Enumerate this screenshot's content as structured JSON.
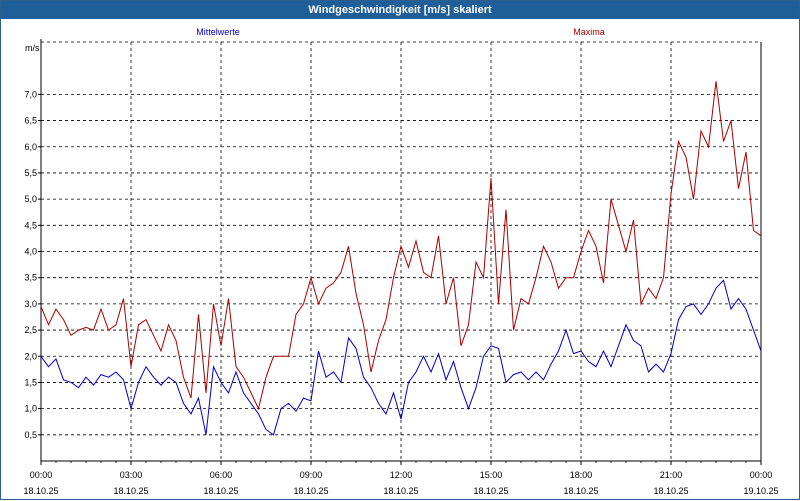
{
  "window": {
    "title": "Windgeschwindigkeit [m/s] skaliert"
  },
  "colors": {
    "mittel": "#0000cc",
    "maxima": "#aa0000",
    "titlebar": "#1f5f99"
  },
  "chart_data": {
    "type": "line",
    "title": "Windgeschwindigkeit [m/s] skaliert",
    "ylabel": "m/s",
    "xlabel": "",
    "ylim": [
      0,
      8
    ],
    "xlim": [
      0,
      24
    ],
    "y_ticks": [
      0.5,
      1.0,
      1.5,
      2.0,
      2.5,
      3.0,
      3.5,
      4.0,
      4.5,
      5.0,
      5.5,
      6.0,
      6.5,
      7.0
    ],
    "y_tick_labels": [
      "0,5",
      "1,0",
      "1,5",
      "2,0",
      "2,5",
      "3,0",
      "3,5",
      "4,0",
      "4,5",
      "5,0",
      "5,5",
      "6,0",
      "6,5",
      "7,0"
    ],
    "x_ticks": [
      0,
      3,
      6,
      9,
      12,
      15,
      18,
      21,
      24
    ],
    "x_tick_labels": [
      [
        "00:00",
        "18.10.25"
      ],
      [
        "03:00",
        "18.10.25"
      ],
      [
        "06:00",
        "18.10.25"
      ],
      [
        "09:00",
        "18.10.25"
      ],
      [
        "12:00",
        "18.10.25"
      ],
      [
        "15:00",
        "18.10.25"
      ],
      [
        "18:00",
        "18.10.25"
      ],
      [
        "21:00",
        "18.10.25"
      ],
      [
        "00:00",
        "19.10.25"
      ]
    ],
    "grid": true,
    "series": [
      {
        "name": "Mittelwerte",
        "color": "#0000cc",
        "x": [
          0,
          0.25,
          0.5,
          0.75,
          1.0,
          1.25,
          1.5,
          1.75,
          2.0,
          2.25,
          2.5,
          2.75,
          3.0,
          3.25,
          3.5,
          3.75,
          4.0,
          4.25,
          4.5,
          4.75,
          5.0,
          5.25,
          5.5,
          5.75,
          6.0,
          6.25,
          6.5,
          6.75,
          7.0,
          7.25,
          7.5,
          7.75,
          8.0,
          8.25,
          8.5,
          8.75,
          9.0,
          9.25,
          9.5,
          9.75,
          10.0,
          10.25,
          10.5,
          10.75,
          11.0,
          11.25,
          11.5,
          11.75,
          12.0,
          12.25,
          12.5,
          12.75,
          13.0,
          13.25,
          13.5,
          13.75,
          14.0,
          14.25,
          14.5,
          14.75,
          15.0,
          15.25,
          15.5,
          15.75,
          16.0,
          16.25,
          16.5,
          16.75,
          17.0,
          17.25,
          17.5,
          17.75,
          18.0,
          18.25,
          18.5,
          18.75,
          19.0,
          19.25,
          19.5,
          19.75,
          20.0,
          20.25,
          20.5,
          20.75,
          21.0,
          21.25,
          21.5,
          21.75,
          22.0,
          22.25,
          22.5,
          22.75,
          23.0,
          23.25,
          23.5,
          23.75,
          24.0
        ],
        "values": [
          2.0,
          1.8,
          1.95,
          1.55,
          1.5,
          1.4,
          1.6,
          1.45,
          1.65,
          1.6,
          1.7,
          1.55,
          1.0,
          1.5,
          1.8,
          1.6,
          1.45,
          1.6,
          1.5,
          1.1,
          0.9,
          1.2,
          0.5,
          1.8,
          1.5,
          1.3,
          1.7,
          1.3,
          1.1,
          0.9,
          0.6,
          0.5,
          1.0,
          1.1,
          0.95,
          1.2,
          1.15,
          2.1,
          1.6,
          1.7,
          1.5,
          2.35,
          2.15,
          1.6,
          1.4,
          1.1,
          0.9,
          1.3,
          0.8,
          1.5,
          1.7,
          2.0,
          1.7,
          2.05,
          1.55,
          1.9,
          1.4,
          1.0,
          1.4,
          2.0,
          2.2,
          2.15,
          1.5,
          1.65,
          1.7,
          1.55,
          1.7,
          1.55,
          1.85,
          2.1,
          2.5,
          2.05,
          2.1,
          1.9,
          1.8,
          2.1,
          1.8,
          2.2,
          2.6,
          2.3,
          2.2,
          1.7,
          1.85,
          1.7,
          2.05,
          2.7,
          2.95,
          3.0,
          2.8,
          3.0,
          3.3,
          3.45,
          2.9,
          3.1,
          2.9,
          2.5,
          2.1
        ]
      },
      {
        "name": "Maxima",
        "color": "#aa0000",
        "x": [
          0,
          0.25,
          0.5,
          0.75,
          1.0,
          1.25,
          1.5,
          1.75,
          2.0,
          2.25,
          2.5,
          2.75,
          3.0,
          3.25,
          3.5,
          3.75,
          4.0,
          4.25,
          4.5,
          4.75,
          5.0,
          5.25,
          5.5,
          5.75,
          6.0,
          6.25,
          6.5,
          6.75,
          7.0,
          7.25,
          7.5,
          7.75,
          8.0,
          8.25,
          8.5,
          8.75,
          9.0,
          9.25,
          9.5,
          9.75,
          10.0,
          10.25,
          10.5,
          10.75,
          11.0,
          11.25,
          11.5,
          11.75,
          12.0,
          12.25,
          12.5,
          12.75,
          13.0,
          13.25,
          13.5,
          13.75,
          14.0,
          14.25,
          14.5,
          14.75,
          15.0,
          15.25,
          15.5,
          15.75,
          16.0,
          16.25,
          16.5,
          16.75,
          17.0,
          17.25,
          17.5,
          17.75,
          18.0,
          18.25,
          18.5,
          18.75,
          19.0,
          19.25,
          19.5,
          19.75,
          20.0,
          20.25,
          20.5,
          20.75,
          21.0,
          21.25,
          21.5,
          21.75,
          22.0,
          22.25,
          22.5,
          22.75,
          23.0,
          23.25,
          23.5,
          23.75,
          24.0
        ],
        "values": [
          2.95,
          2.6,
          2.9,
          2.7,
          2.4,
          2.5,
          2.55,
          2.5,
          2.9,
          2.5,
          2.6,
          3.1,
          1.8,
          2.6,
          2.7,
          2.4,
          2.1,
          2.6,
          2.3,
          1.6,
          1.2,
          2.8,
          1.3,
          3.0,
          2.2,
          3.1,
          1.8,
          1.6,
          1.3,
          1.0,
          1.6,
          2.0,
          2.0,
          2.0,
          2.8,
          3.0,
          3.5,
          3.0,
          3.3,
          3.4,
          3.6,
          4.1,
          3.2,
          2.6,
          1.7,
          2.3,
          2.7,
          3.5,
          4.1,
          3.7,
          4.2,
          3.6,
          3.5,
          4.3,
          3.0,
          3.5,
          2.2,
          2.6,
          3.8,
          3.5,
          5.4,
          3.0,
          4.8,
          2.5,
          3.1,
          3.0,
          3.5,
          4.1,
          3.8,
          3.3,
          3.5,
          3.5,
          4.0,
          4.4,
          4.1,
          3.4,
          5.0,
          4.5,
          4.0,
          4.6,
          3.0,
          3.3,
          3.1,
          3.5,
          5.1,
          6.1,
          5.8,
          5.0,
          6.3,
          6.0,
          7.25,
          6.1,
          6.5,
          5.2,
          5.9,
          4.4,
          4.3
        ]
      }
    ],
    "legend": [
      {
        "name": "Mittelwerte",
        "color": "#0000cc",
        "placement": "top-left"
      },
      {
        "name": "Maxima",
        "color": "#aa0000",
        "placement": "top-right"
      }
    ]
  }
}
